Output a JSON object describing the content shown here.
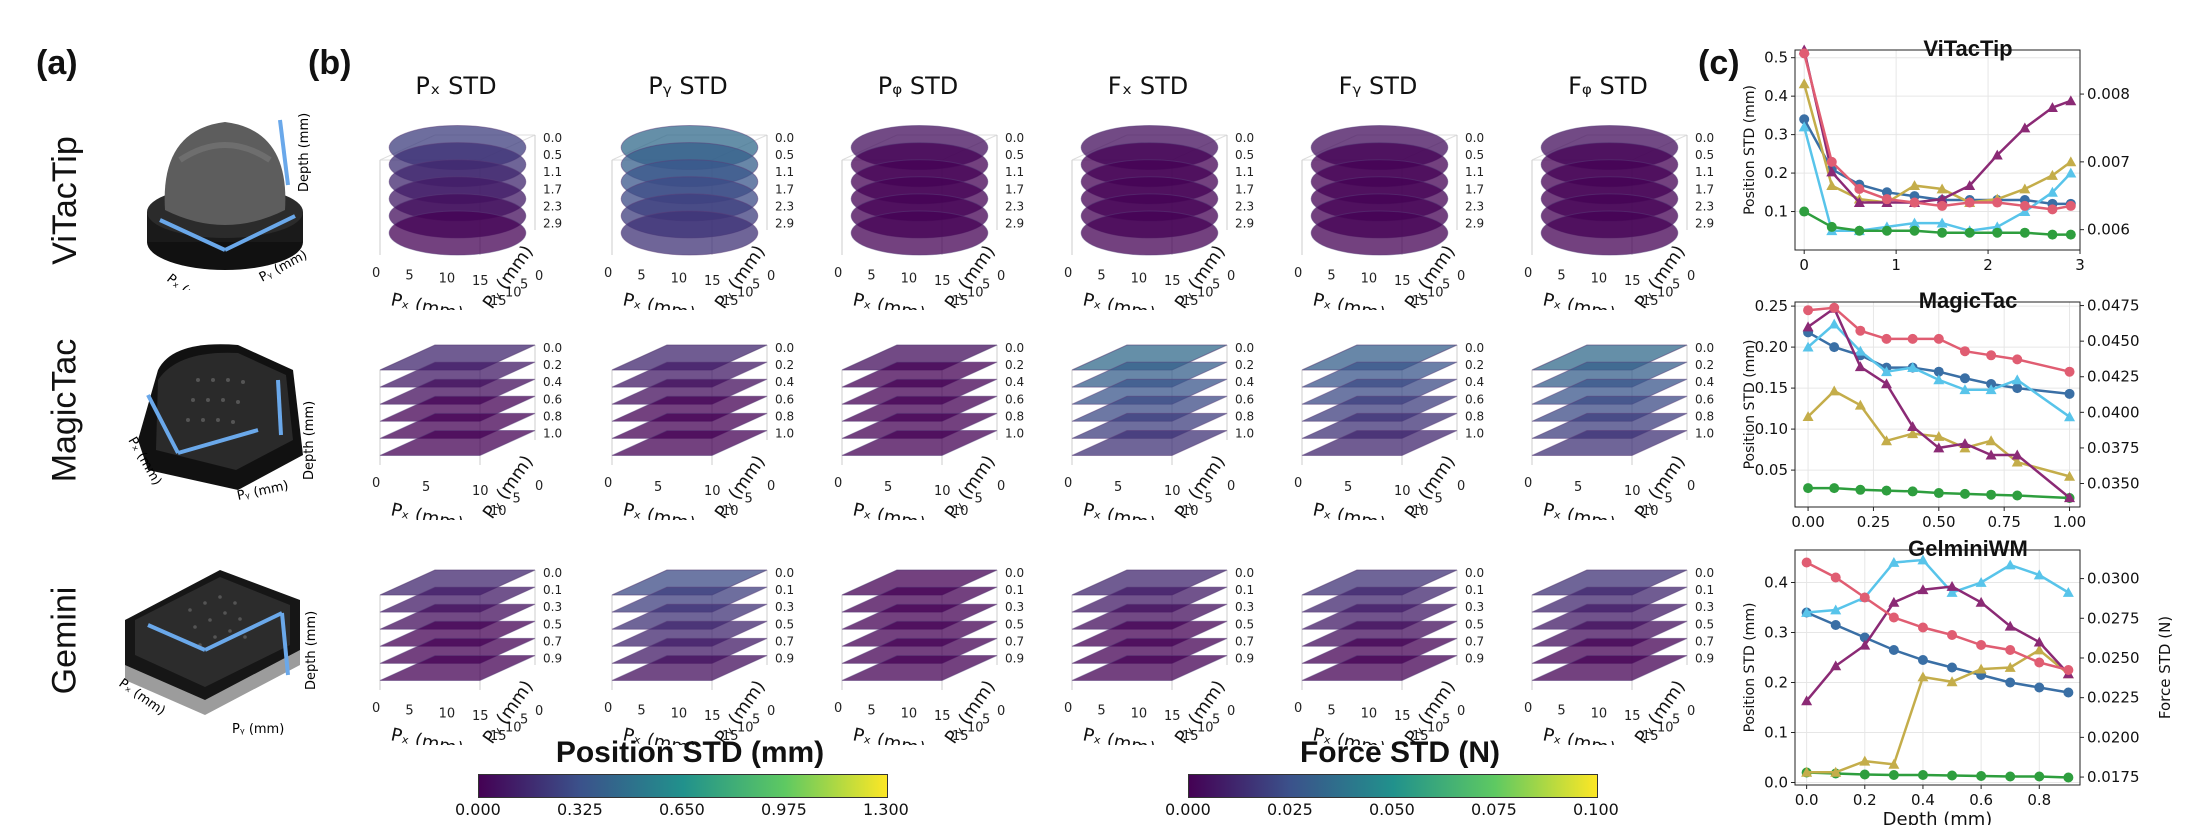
{
  "panels": {
    "a": "(a)",
    "b": "(b)",
    "c": "(c)"
  },
  "sensors": [
    {
      "name": "ViTacTip",
      "px": "Pₓ (mm)",
      "py": "Pᵧ (mm)",
      "depth": "Depth (mm)"
    },
    {
      "name": "MagicTac",
      "px": "Pₓ (mm)",
      "py": "Pᵧ (mm)",
      "depth": "Depth (mm)"
    },
    {
      "name": "Gemini",
      "px": "Pₓ (mm)",
      "py": "Pᵧ (mm)",
      "depth": "Depth (mm)"
    }
  ],
  "columns": [
    "Pₓ STD",
    "Pᵧ STD",
    "Pᵩ STD",
    "Fₓ STD",
    "Fᵧ STD",
    "Fᵩ STD"
  ],
  "cube_axes": {
    "x_label": "Pₓ (mm)",
    "y_label": "Pᵧ (mm)",
    "z_label": "Depth (mm)",
    "rows": [
      {
        "x_ticks": [
          "0",
          "5",
          "10",
          "15"
        ],
        "y_ticks": [
          "15",
          "10",
          "5",
          "0"
        ],
        "depth_ticks": [
          "0.0",
          "0.5",
          "1.1",
          "1.7",
          "2.3",
          "2.9"
        ]
      },
      {
        "x_ticks": [
          "0",
          "5",
          "10"
        ],
        "y_ticks": [
          "10",
          "5",
          "0"
        ],
        "depth_ticks": [
          "0.0",
          "0.2",
          "0.4",
          "0.6",
          "0.8",
          "1.0"
        ]
      },
      {
        "x_ticks": [
          "0",
          "5",
          "10",
          "15"
        ],
        "y_ticks": [
          "15",
          "10",
          "5",
          "0"
        ],
        "depth_ticks": [
          "0.0",
          "0.1",
          "0.3",
          "0.5",
          "0.7",
          "0.9"
        ]
      }
    ]
  },
  "colorbars": [
    {
      "title": "Position STD (mm)",
      "ticks": [
        "0.000",
        "0.325",
        "0.650",
        "0.975",
        "1.300"
      ]
    },
    {
      "title": "Force STD (N)",
      "ticks": [
        "0.000",
        "0.025",
        "0.050",
        "0.075",
        "0.100"
      ]
    }
  ],
  "colors": {
    "px": "#3a6fa5",
    "py": "#58c4ea",
    "pz": "#2e9e3e",
    "fx": "#c4ad4a",
    "fy": "#8b2a75",
    "fz": "#e05d72"
  },
  "chart_data": [
    {
      "type": "line",
      "title": "ViTacTip",
      "xlabel": "",
      "ylabel": "Position STD (mm)",
      "y2label": "",
      "xlim": [
        -0.1,
        3.0
      ],
      "ylim": [
        0.0,
        0.52
      ],
      "y2lim": [
        0.0057,
        0.00865
      ],
      "x_ticks": [
        "0",
        "1",
        "2",
        "3"
      ],
      "y_ticks": [
        "0.1",
        "0.2",
        "0.3",
        "0.4",
        "0.5"
      ],
      "y2_ticks": [
        "0.006",
        "0.007",
        "0.008"
      ],
      "x": [
        0.0,
        0.3,
        0.6,
        0.9,
        1.2,
        1.5,
        1.8,
        2.1,
        2.4,
        2.7,
        2.9
      ],
      "series": [
        {
          "key": "px",
          "marker": "circle",
          "axis": "left",
          "values": [
            0.34,
            0.21,
            0.17,
            0.15,
            0.14,
            0.13,
            0.13,
            0.13,
            0.13,
            0.12,
            0.12
          ]
        },
        {
          "key": "py",
          "marker": "triangle",
          "axis": "left",
          "values": [
            0.32,
            0.05,
            0.05,
            0.06,
            0.07,
            0.07,
            0.05,
            0.06,
            0.1,
            0.15,
            0.2
          ]
        },
        {
          "key": "pz",
          "marker": "circle",
          "axis": "left",
          "values": [
            0.1,
            0.06,
            0.05,
            0.05,
            0.05,
            0.045,
            0.045,
            0.045,
            0.045,
            0.04,
            0.04
          ]
        },
        {
          "key": "fx",
          "marker": "triangle",
          "axis": "right",
          "values": [
            0.00815,
            0.00665,
            0.00645,
            0.0064,
            0.00665,
            0.0066,
            0.0064,
            0.00645,
            0.0066,
            0.0068,
            0.007
          ]
        },
        {
          "key": "fy",
          "marker": "triangle",
          "axis": "right",
          "values": [
            0.00865,
            0.00685,
            0.0064,
            0.0064,
            0.0064,
            0.00645,
            0.00665,
            0.0071,
            0.0075,
            0.0078,
            0.0079
          ]
        },
        {
          "key": "fz",
          "marker": "circle",
          "axis": "right",
          "values": [
            0.0086,
            0.007,
            0.0066,
            0.00645,
            0.0064,
            0.00635,
            0.0064,
            0.0064,
            0.00635,
            0.0063,
            0.00635
          ]
        }
      ]
    },
    {
      "type": "line",
      "title": "MagicTac",
      "xlabel": "",
      "ylabel": "Position STD (mm)",
      "y2label": "",
      "xlim": [
        -0.05,
        1.04
      ],
      "ylim": [
        0.005,
        0.255
      ],
      "y2lim": [
        0.03335,
        0.04775
      ],
      "x_ticks": [
        "0.00",
        "0.25",
        "0.50",
        "0.75",
        "1.00"
      ],
      "y_ticks": [
        "0.05",
        "0.10",
        "0.15",
        "0.20",
        "0.25"
      ],
      "y2_ticks": [
        "0.0350",
        "0.0375",
        "0.0400",
        "0.0425",
        "0.0450",
        "0.0475"
      ],
      "x": [
        0.0,
        0.1,
        0.2,
        0.3,
        0.4,
        0.5,
        0.6,
        0.7,
        0.8,
        1.0
      ],
      "series": [
        {
          "key": "px",
          "marker": "circle",
          "axis": "left",
          "values": [
            0.218,
            0.2,
            0.19,
            0.175,
            0.175,
            0.17,
            0.162,
            0.155,
            0.15,
            0.143
          ]
        },
        {
          "key": "py",
          "marker": "triangle",
          "axis": "left",
          "values": [
            0.2,
            0.228,
            0.195,
            0.17,
            0.175,
            0.16,
            0.148,
            0.148,
            0.16,
            0.115
          ]
        },
        {
          "key": "pz",
          "marker": "circle",
          "axis": "left",
          "values": [
            0.028,
            0.028,
            0.026,
            0.025,
            0.024,
            0.022,
            0.021,
            0.02,
            0.019,
            0.016
          ]
        },
        {
          "key": "fx",
          "marker": "triangle",
          "axis": "right",
          "values": [
            0.0397,
            0.0415,
            0.0405,
            0.038,
            0.0385,
            0.0383,
            0.0375,
            0.038,
            0.0365,
            0.0355
          ]
        },
        {
          "key": "fy",
          "marker": "triangle",
          "axis": "right",
          "values": [
            0.046,
            0.0473,
            0.0432,
            0.042,
            0.039,
            0.0375,
            0.0378,
            0.037,
            0.037,
            0.034
          ]
        },
        {
          "key": "fz",
          "marker": "circle",
          "axis": "left",
          "values": [
            0.245,
            0.248,
            0.22,
            0.21,
            0.21,
            0.21,
            0.195,
            0.19,
            0.185,
            0.17
          ]
        }
      ]
    },
    {
      "type": "line",
      "title": "GelminiWM",
      "xlabel": "Depth (mm)",
      "ylabel": "Position STD (mm)",
      "y2label": "Force STD (N)",
      "xlim": [
        -0.04,
        0.94
      ],
      "ylim": [
        -0.005,
        0.465
      ],
      "y2lim": [
        0.017,
        0.0318
      ],
      "x_ticks": [
        "0.0",
        "0.2",
        "0.4",
        "0.6",
        "0.8"
      ],
      "y_ticks": [
        "0.0",
        "0.1",
        "0.2",
        "0.3",
        "0.4"
      ],
      "y2_ticks": [
        "0.0175",
        "0.0200",
        "0.0225",
        "0.0250",
        "0.0275",
        "0.0300"
      ],
      "x": [
        0.0,
        0.1,
        0.2,
        0.3,
        0.4,
        0.5,
        0.6,
        0.7,
        0.8,
        0.9
      ],
      "series": [
        {
          "key": "px",
          "marker": "circle",
          "axis": "left",
          "values": [
            0.34,
            0.315,
            0.29,
            0.265,
            0.245,
            0.23,
            0.215,
            0.2,
            0.19,
            0.18
          ]
        },
        {
          "key": "py",
          "marker": "triangle",
          "axis": "left",
          "values": [
            0.34,
            0.345,
            0.37,
            0.44,
            0.445,
            0.38,
            0.4,
            0.435,
            0.415,
            0.38
          ]
        },
        {
          "key": "pz",
          "marker": "circle",
          "axis": "left",
          "values": [
            0.02,
            0.018,
            0.016,
            0.015,
            0.015,
            0.014,
            0.013,
            0.012,
            0.012,
            0.01
          ]
        },
        {
          "key": "fx",
          "marker": "triangle",
          "axis": "right",
          "values": [
            0.0178,
            0.0178,
            0.0185,
            0.0183,
            0.0238,
            0.0235,
            0.0243,
            0.0244,
            0.0255,
            0.024
          ]
        },
        {
          "key": "fy",
          "marker": "triangle",
          "axis": "right",
          "values": [
            0.0223,
            0.0245,
            0.0258,
            0.0285,
            0.0293,
            0.0295,
            0.0285,
            0.027,
            0.026,
            0.024
          ]
        },
        {
          "key": "fz",
          "marker": "circle",
          "axis": "left",
          "values": [
            0.44,
            0.41,
            0.37,
            0.33,
            0.31,
            0.295,
            0.275,
            0.265,
            0.24,
            0.225
          ]
        }
      ]
    }
  ]
}
